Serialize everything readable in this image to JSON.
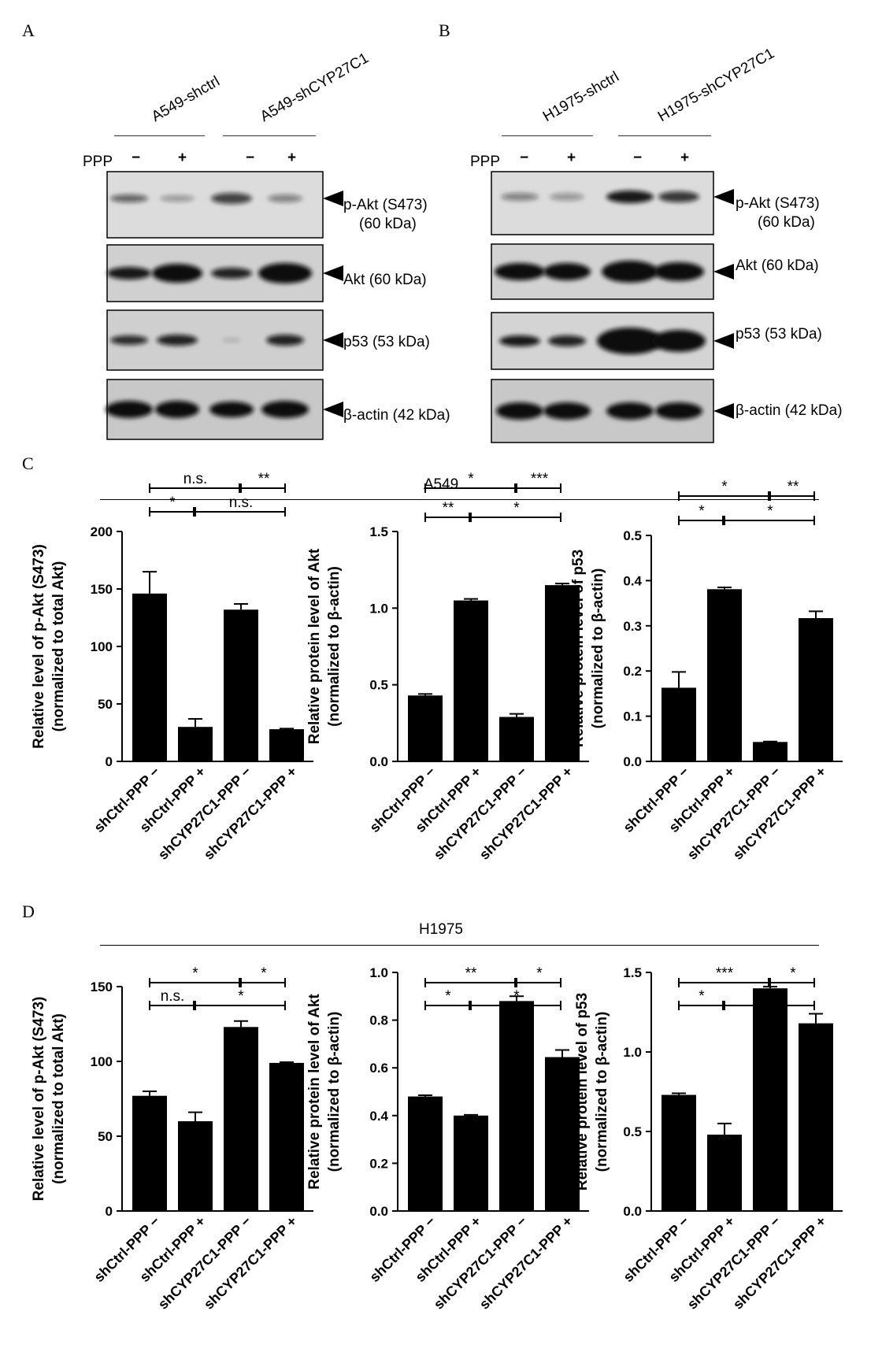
{
  "panel_labels": {
    "a": "A",
    "b": "B",
    "c": "C",
    "d": "D"
  },
  "blots": {
    "a": {
      "groups": [
        "A549-shctrl",
        "A549-shCYP27C1"
      ],
      "ppp_label": "PPP",
      "signs": [
        "−",
        "+",
        "−",
        "+"
      ],
      "bands": [
        "p-Akt (S473)",
        "(60 kDa)",
        "Akt (60 kDa)",
        "p53 (53 kDa)",
        "β-actin (42 kDa)"
      ]
    },
    "b": {
      "groups": [
        "H1975-shctrl",
        "H1975-shCYP27C1"
      ],
      "ppp_label": "PPP",
      "signs": [
        "−",
        "+",
        "−",
        "+"
      ],
      "bands": [
        "p-Akt (S473)",
        "(60 kDa)",
        "Akt (60 kDa)",
        "p53 (53 kDa)",
        "β-actin (42 kDa)"
      ]
    }
  },
  "row_titles": {
    "c": "A549",
    "d": "H1975"
  },
  "chart_data": [
    {
      "id": "c1",
      "type": "bar",
      "categories": [
        "shCtrl-PPP −",
        "shCtrl-PPP +",
        "shCYP27C1-PPP −",
        "shCYP27C1-PPP +"
      ],
      "values": [
        146,
        30,
        132,
        28
      ],
      "errors": [
        19,
        7,
        5,
        0.5
      ],
      "ylabel": [
        "Relative level of p-Akt (S473)",
        "(normalized to total Akt)"
      ],
      "ylim": [
        0,
        200
      ],
      "yticks": [
        "0",
        "50",
        "100",
        "150",
        "200"
      ],
      "significance": [
        {
          "from": 0,
          "to": 2,
          "label": "n.s.",
          "tier": 2
        },
        {
          "from": 2,
          "to": 3,
          "label": "**",
          "tier": 2
        },
        {
          "from": 0,
          "to": 1,
          "label": "*",
          "tier": 1
        },
        {
          "from": 1,
          "to": 3,
          "label": "n.s.",
          "tier": 1
        }
      ]
    },
    {
      "id": "c2",
      "type": "bar",
      "categories": [
        "shCtrl-PPP −",
        "shCtrl-PPP +",
        "shCYP27C1-PPP −",
        "shCYP27C1-PPP +"
      ],
      "values": [
        0.43,
        1.05,
        0.29,
        1.15
      ],
      "errors": [
        0.01,
        0.01,
        0.02,
        0.01
      ],
      "ylabel": [
        "Relative protein level of Akt",
        "(normalized to β-actin)"
      ],
      "ylim": [
        0,
        1.5
      ],
      "yticks": [
        "0.0",
        "0.5",
        "1.0",
        "1.5"
      ],
      "significance": [
        {
          "from": 0,
          "to": 2,
          "label": "*",
          "tier": 2
        },
        {
          "from": 2,
          "to": 3,
          "label": "***",
          "tier": 2
        },
        {
          "from": 0,
          "to": 1,
          "label": "**",
          "tier": 1
        },
        {
          "from": 1,
          "to": 3,
          "label": "*",
          "tier": 1
        }
      ]
    },
    {
      "id": "c3",
      "type": "bar",
      "categories": [
        "shCtrl-PPP −",
        "shCtrl-PPP +",
        "shCYP27C1-PPP −",
        "shCYP27C1-PPP +"
      ],
      "values": [
        0.163,
        0.381,
        0.043,
        0.317
      ],
      "errors": [
        0.035,
        0.004,
        0.001,
        0.015
      ],
      "ylabel": [
        "Relative protein level of p53",
        "(normalized to β-actin)"
      ],
      "ylim": [
        0,
        0.5
      ],
      "yticks": [
        "0.0",
        "0.1",
        "0.2",
        "0.3",
        "0.4",
        "0.5"
      ],
      "significance": [
        {
          "from": 0,
          "to": 2,
          "label": "*",
          "tier": 2
        },
        {
          "from": 2,
          "to": 3,
          "label": "**",
          "tier": 2
        },
        {
          "from": 0,
          "to": 1,
          "label": "*",
          "tier": 1
        },
        {
          "from": 1,
          "to": 3,
          "label": "*",
          "tier": 1
        }
      ]
    },
    {
      "id": "d1",
      "type": "bar",
      "categories": [
        "shCtrl-PPP −",
        "shCtrl-PPP +",
        "shCYP27C1-PPP −",
        "shCYP27C1-PPP +"
      ],
      "values": [
        77,
        60,
        123,
        99
      ],
      "errors": [
        3,
        6,
        4,
        0.5
      ],
      "ylabel": [
        "Relative level of p-Akt (S473)",
        "(normalized to total Akt)"
      ],
      "ylim": [
        0,
        150
      ],
      "yticks": [
        "0",
        "50",
        "100",
        "150"
      ],
      "significance": [
        {
          "from": 0,
          "to": 2,
          "label": "*",
          "tier": 2
        },
        {
          "from": 2,
          "to": 3,
          "label": "*",
          "tier": 2
        },
        {
          "from": 0,
          "to": 1,
          "label": "n.s.",
          "tier": 1
        },
        {
          "from": 1,
          "to": 3,
          "label": "*",
          "tier": 1
        }
      ]
    },
    {
      "id": "d2",
      "type": "bar",
      "categories": [
        "shCtrl-PPP −",
        "shCtrl-PPP +",
        "shCYP27C1-PPP −",
        "shCYP27C1-PPP +"
      ],
      "values": [
        0.48,
        0.4,
        0.88,
        0.645
      ],
      "errors": [
        0.005,
        0.003,
        0.02,
        0.03
      ],
      "ylabel": [
        "Relative protein level of Akt",
        "(normalized to β-actin)"
      ],
      "ylim": [
        0,
        1.0
      ],
      "yticks": [
        "0.0",
        "0.2",
        "0.4",
        "0.6",
        "0.8",
        "1.0"
      ],
      "significance": [
        {
          "from": 0,
          "to": 2,
          "label": "**",
          "tier": 2
        },
        {
          "from": 2,
          "to": 3,
          "label": "*",
          "tier": 2
        },
        {
          "from": 0,
          "to": 1,
          "label": "*",
          "tier": 1
        },
        {
          "from": 1,
          "to": 3,
          "label": "*",
          "tier": 1
        }
      ]
    },
    {
      "id": "d3",
      "type": "bar",
      "categories": [
        "shCtrl-PPP −",
        "shCtrl-PPP +",
        "shCYP27C1-PPP −",
        "shCYP27C1-PPP +"
      ],
      "values": [
        0.73,
        0.48,
        1.4,
        1.18
      ],
      "errors": [
        0.01,
        0.07,
        0.01,
        0.06
      ],
      "ylabel": [
        "Relative protein level of p53",
        "(normalized to β-actin)"
      ],
      "ylim": [
        0,
        1.5
      ],
      "yticks": [
        "0.0",
        "0.5",
        "1.0",
        "1.5"
      ],
      "significance": [
        {
          "from": 0,
          "to": 2,
          "label": "***",
          "tier": 2
        },
        {
          "from": 2,
          "to": 3,
          "label": "*",
          "tier": 2
        },
        {
          "from": 0,
          "to": 1,
          "label": "*",
          "tier": 1
        },
        {
          "from": 1,
          "to": 3,
          "label": "**",
          "tier": 1
        }
      ]
    }
  ]
}
